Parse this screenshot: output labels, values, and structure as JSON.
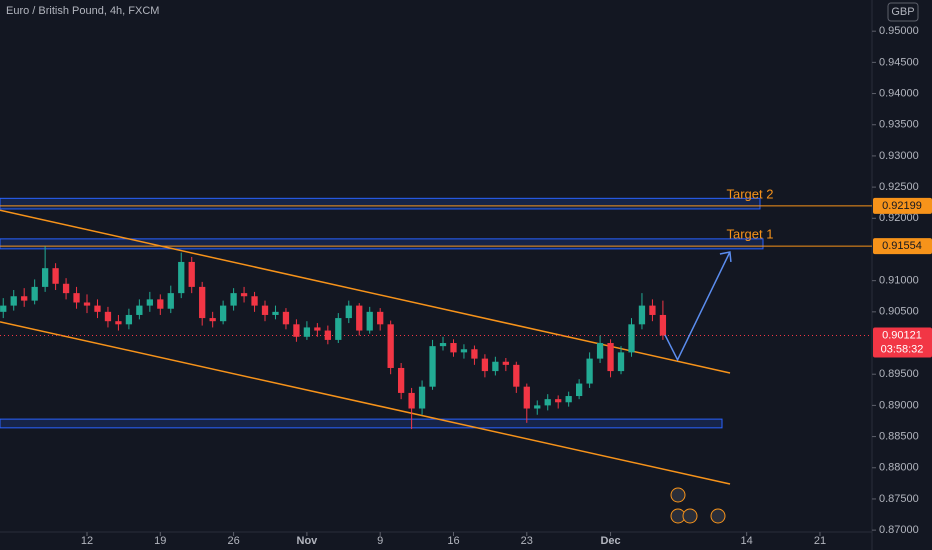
{
  "chart_data": {
    "type": "candlestick",
    "title": "Euro / British Pound, 4h, FXCM",
    "currency": "GBP",
    "x": [
      3,
      4,
      5,
      6,
      7,
      8,
      9,
      10,
      11,
      12,
      13,
      14,
      15,
      16,
      17,
      18,
      19,
      20,
      21,
      22,
      23,
      24,
      25,
      26,
      27,
      28,
      29,
      30,
      31,
      32,
      33,
      34,
      35,
      36,
      37,
      38,
      39,
      40,
      41,
      42,
      43,
      44,
      45,
      46,
      47,
      48,
      49,
      50,
      51,
      52,
      53,
      54,
      55,
      56,
      57,
      58,
      59,
      60,
      61,
      62,
      63,
      64,
      65,
      66
    ],
    "open": [
      0.905,
      0.906,
      0.9075,
      0.9068,
      0.909,
      0.912,
      0.9095,
      0.908,
      0.9065,
      0.906,
      0.905,
      0.9035,
      0.903,
      0.9045,
      0.906,
      0.907,
      0.9055,
      0.908,
      0.913,
      0.909,
      0.904,
      0.9035,
      0.906,
      0.908,
      0.9075,
      0.906,
      0.9045,
      0.905,
      0.903,
      0.901,
      0.9025,
      0.902,
      0.9005,
      0.904,
      0.906,
      0.902,
      0.905,
      0.903,
      0.896,
      0.892,
      0.8895,
      0.893,
      0.8995,
      0.9,
      0.8985,
      0.899,
      0.8975,
      0.8955,
      0.897,
      0.8965,
      0.893,
      0.8895,
      0.89,
      0.891,
      0.8905,
      0.8915,
      0.8935,
      0.8975,
      0.9,
      0.8955,
      0.8985,
      0.903,
      0.906,
      0.9045
    ],
    "high": [
      0.9072,
      0.9085,
      0.9088,
      0.9102,
      0.9155,
      0.9128,
      0.9104,
      0.909,
      0.9078,
      0.907,
      0.9058,
      0.9045,
      0.9055,
      0.907,
      0.9082,
      0.9078,
      0.9092,
      0.9145,
      0.9138,
      0.9098,
      0.905,
      0.9068,
      0.9088,
      0.909,
      0.9082,
      0.9068,
      0.906,
      0.9056,
      0.9038,
      0.9035,
      0.9032,
      0.9028,
      0.9048,
      0.9068,
      0.9064,
      0.9058,
      0.9056,
      0.9036,
      0.8968,
      0.8928,
      0.894,
      0.9005,
      0.901,
      0.9006,
      0.8998,
      0.8996,
      0.8982,
      0.8978,
      0.8976,
      0.897,
      0.8935,
      0.8908,
      0.8918,
      0.8916,
      0.8922,
      0.8942,
      0.8985,
      0.9012,
      0.9006,
      0.8995,
      0.904,
      0.908,
      0.907,
      0.9068
    ],
    "low": [
      0.904,
      0.9052,
      0.9058,
      0.9062,
      0.9082,
      0.9085,
      0.907,
      0.9055,
      0.9048,
      0.904,
      0.9025,
      0.902,
      0.9022,
      0.9038,
      0.905,
      0.9045,
      0.9048,
      0.9072,
      0.908,
      0.9028,
      0.9025,
      0.903,
      0.9052,
      0.9065,
      0.905,
      0.9035,
      0.9038,
      0.9022,
      0.9002,
      0.9005,
      0.901,
      0.8998,
      0.9,
      0.9032,
      0.9012,
      0.9015,
      0.902,
      0.895,
      0.891,
      0.8862,
      0.8885,
      0.8925,
      0.8988,
      0.8978,
      0.8975,
      0.8965,
      0.8945,
      0.8948,
      0.8955,
      0.892,
      0.8872,
      0.8885,
      0.8892,
      0.8895,
      0.8898,
      0.891,
      0.8928,
      0.8968,
      0.8945,
      0.895,
      0.8978,
      0.9022,
      0.9035,
      0.9005
    ],
    "close": [
      0.906,
      0.9075,
      0.9068,
      0.909,
      0.912,
      0.9095,
      0.908,
      0.9065,
      0.906,
      0.905,
      0.9035,
      0.903,
      0.9045,
      0.906,
      0.907,
      0.9055,
      0.908,
      0.913,
      0.909,
      0.904,
      0.9035,
      0.906,
      0.908,
      0.9075,
      0.906,
      0.9045,
      0.905,
      0.903,
      0.901,
      0.9025,
      0.902,
      0.9005,
      0.904,
      0.906,
      0.902,
      0.905,
      0.903,
      0.896,
      0.892,
      0.8895,
      0.893,
      0.8995,
      0.9,
      0.8985,
      0.899,
      0.8975,
      0.8955,
      0.897,
      0.8965,
      0.893,
      0.8895,
      0.89,
      0.891,
      0.8905,
      0.8915,
      0.8935,
      0.8975,
      0.9,
      0.8955,
      0.8985,
      0.903,
      0.906,
      0.9045,
      0.9012
    ],
    "up_color": "#22ab94",
    "down_color": "#f23645",
    "xlim": [
      2.69,
      85.97
    ],
    "xticks": [
      {
        "value": 11,
        "label": "12"
      },
      {
        "value": 18,
        "label": "19"
      },
      {
        "value": 25,
        "label": "26"
      },
      {
        "value": 32,
        "label": "Nov"
      },
      {
        "value": 39,
        "label": "9"
      },
      {
        "value": 46,
        "label": "16"
      },
      {
        "value": 53,
        "label": "23"
      },
      {
        "value": 61,
        "label": "Dec"
      },
      {
        "value": 74,
        "label": "14"
      },
      {
        "value": 81,
        "label": "21"
      }
    ],
    "ylim": [
      0.8697,
      0.955
    ],
    "yticks": [
      {
        "value": 0.95,
        "label": "0.95000"
      },
      {
        "value": 0.945,
        "label": "0.94500"
      },
      {
        "value": 0.94,
        "label": "0.94000"
      },
      {
        "value": 0.935,
        "label": "0.93500"
      },
      {
        "value": 0.93,
        "label": "0.93000"
      },
      {
        "value": 0.925,
        "label": "0.92500"
      },
      {
        "value": 0.92,
        "label": "0.92000"
      },
      {
        "value": 0.91,
        "label": "0.91000"
      },
      {
        "value": 0.905,
        "label": "0.90500"
      },
      {
        "value": 0.895,
        "label": "0.89500"
      },
      {
        "value": 0.89,
        "label": "0.89000"
      },
      {
        "value": 0.885,
        "label": "0.88500"
      },
      {
        "value": 0.88,
        "label": "0.88000"
      },
      {
        "value": 0.875,
        "label": "0.87500"
      },
      {
        "value": 0.87,
        "label": "0.87000"
      }
    ],
    "targets": [
      {
        "label": "Target 1",
        "value": 0.91554
      },
      {
        "label": "Target 2",
        "value": 0.92199
      }
    ],
    "target_color": "#f7931a",
    "zones": [
      {
        "top": 0.9232,
        "bottom": 0.9215
      },
      {
        "top": 0.9167,
        "bottom": 0.9151
      },
      {
        "top": 0.8878,
        "bottom": 0.8864
      }
    ],
    "zone_color": "#2962ff",
    "trendlines": [
      {
        "x": [
          2.69,
          72.41
        ],
        "y": [
          0.9213,
          0.8952
        ]
      },
      {
        "x": [
          2.69,
          72.41
        ],
        "y": [
          0.9034,
          0.8774
        ]
      }
    ],
    "trend_color": "#f7931a",
    "projection": {
      "x": [
        66.2,
        67.4,
        72.4
      ],
      "y": [
        0.9013,
        0.8973,
        0.9146
      ],
      "color": "#5b8def"
    },
    "last_price": {
      "value": 0.90121,
      "countdown": "03:58:32",
      "color": "#f23645"
    }
  }
}
